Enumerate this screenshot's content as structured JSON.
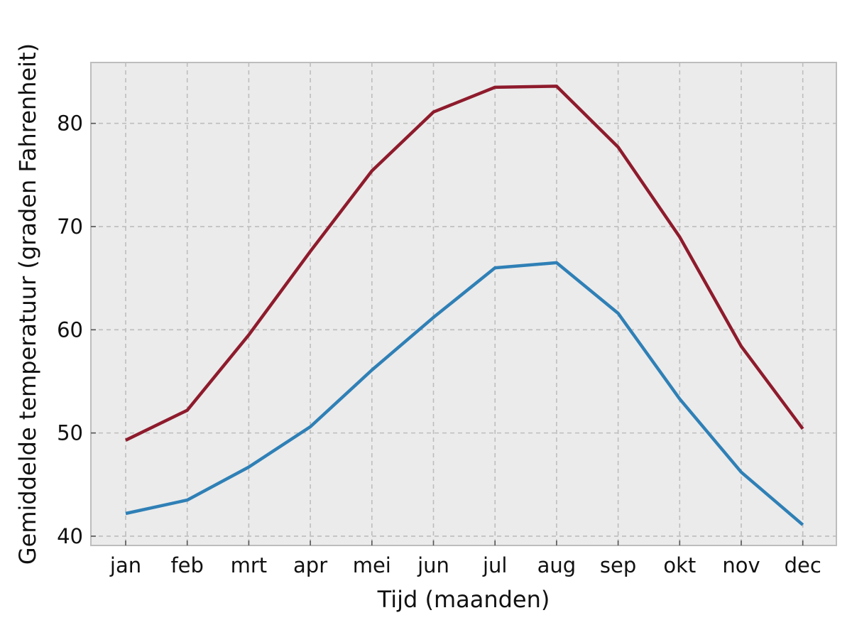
{
  "chart_data": {
    "type": "line",
    "title": "",
    "xlabel": "Tijd (maanden)",
    "ylabel": "Gemiddelde temperatuur (graden Fahrenheit)",
    "categories": [
      "jan",
      "feb",
      "mrt",
      "apr",
      "mei",
      "jun",
      "jul",
      "aug",
      "sep",
      "okt",
      "nov",
      "dec"
    ],
    "ylim": [
      39.1,
      85.9
    ],
    "yticks": [
      40,
      50,
      60,
      70,
      80
    ],
    "ytick_labels": [
      "40",
      "50",
      "60",
      "70",
      "80"
    ],
    "grid": true,
    "legend": "none",
    "background_color": "#ebebeb",
    "series": [
      {
        "values": [
          49.3,
          52.2,
          59.5,
          67.6,
          75.4,
          81.1,
          83.5,
          83.6,
          77.7,
          69.0,
          58.4,
          50.4
        ],
        "color": "#8e1b2c"
      },
      {
        "values": [
          42.2,
          43.5,
          46.7,
          50.6,
          56.1,
          61.2,
          66.0,
          66.5,
          61.6,
          53.3,
          46.2,
          41.1
        ],
        "color": "#2f80b6"
      }
    ]
  }
}
